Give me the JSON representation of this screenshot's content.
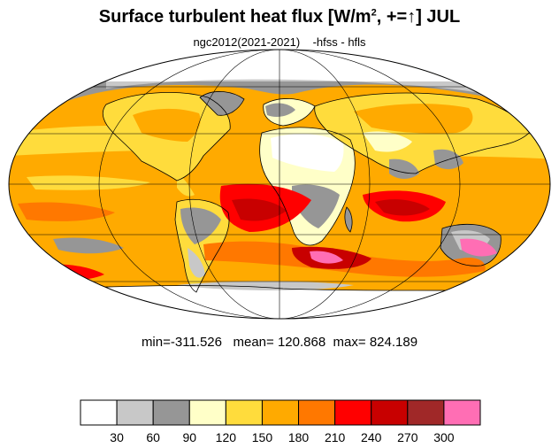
{
  "title": {
    "main": "Surface turbulent heat flux [W/m",
    "sup": "2",
    "rest": ", +=↑]  JUL"
  },
  "subtitle": "ngc2012(2021-2021)    -hfss - hfls",
  "stats": {
    "min_label": "min=",
    "min": "-311.526",
    "mean_label": "mean=",
    "mean": "120.868",
    "max_label": "max=",
    "max": "824.189"
  },
  "colorbar": {
    "colors": [
      "#ffffff",
      "#c8c8c8",
      "#969696",
      "#ffffc8",
      "#ffdc3c",
      "#ffaa00",
      "#ff7800",
      "#ff0000",
      "#c80000",
      "#a02828",
      "#ff6eb4"
    ],
    "labels": [
      "30",
      "60",
      "90",
      "120",
      "150",
      "180",
      "210",
      "240",
      "270",
      "300"
    ]
  },
  "map": {
    "projection": "Mollweide",
    "ocean_color": "#ffaa00",
    "gridlines": true,
    "coastlines": true
  }
}
